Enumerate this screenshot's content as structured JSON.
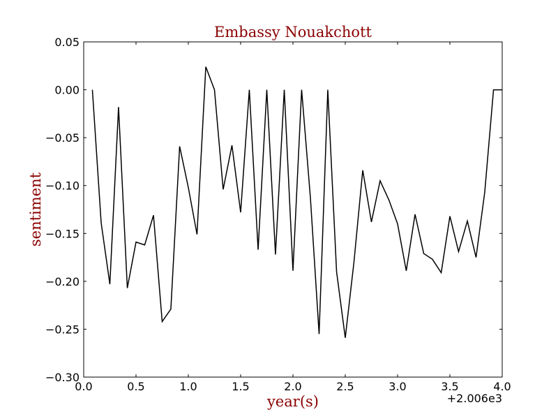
{
  "chart_data": {
    "type": "line",
    "title": "Embassy Nouakchott",
    "xlabel": "year(s)",
    "ylabel": "sentiment",
    "x_offset_label": "+2.006e3",
    "xlim": [
      0.0,
      4.0
    ],
    "ylim": [
      -0.3,
      0.05
    ],
    "x_ticks": [
      0.0,
      0.5,
      1.0,
      1.5,
      2.0,
      2.5,
      3.0,
      3.5,
      4.0
    ],
    "x_tick_labels": [
      "0.0",
      "0.5",
      "1.0",
      "1.5",
      "2.0",
      "2.5",
      "3.0",
      "3.5",
      "4.0"
    ],
    "y_ticks": [
      0.05,
      0.0,
      -0.05,
      -0.1,
      -0.15,
      -0.2,
      -0.25,
      -0.3
    ],
    "y_tick_labels": [
      "0.05",
      "0.00",
      "−0.05",
      "−0.10",
      "−0.15",
      "−0.20",
      "−0.25",
      "−0.30"
    ],
    "grid": false,
    "colors": {
      "line": "#000000",
      "title": "#8b0000",
      "labels": "#8b0000"
    },
    "series": [
      {
        "x": [
          0.083,
          0.167,
          0.25,
          0.333,
          0.417,
          0.5,
          0.583,
          0.667,
          0.75,
          0.833,
          0.917,
          1.0,
          1.083,
          1.167,
          1.25,
          1.333,
          1.417,
          1.5,
          1.583,
          1.667,
          1.75,
          1.833,
          1.917,
          2.0,
          2.083,
          2.167,
          2.25,
          2.333,
          2.417,
          2.5,
          2.583,
          2.667,
          2.75,
          2.833,
          2.917,
          3.0,
          3.083,
          3.167,
          3.25,
          3.333,
          3.417,
          3.5,
          3.583,
          3.667,
          3.75,
          3.833,
          3.917,
          4.0
        ],
        "y": [
          0.0,
          -0.139,
          -0.203,
          -0.018,
          -0.207,
          -0.159,
          -0.162,
          -0.131,
          -0.242,
          -0.229,
          -0.059,
          -0.102,
          -0.151,
          0.024,
          0.0,
          -0.104,
          -0.058,
          -0.128,
          0.0,
          -0.167,
          0.0,
          -0.172,
          0.0,
          -0.189,
          0.0,
          -0.113,
          -0.255,
          0.0,
          -0.19,
          -0.259,
          -0.18,
          -0.084,
          -0.138,
          -0.095,
          -0.115,
          -0.14,
          -0.189,
          -0.13,
          -0.171,
          -0.177,
          -0.191,
          -0.132,
          -0.169,
          -0.137,
          -0.175,
          -0.107,
          0.0,
          0.0
        ]
      }
    ]
  }
}
